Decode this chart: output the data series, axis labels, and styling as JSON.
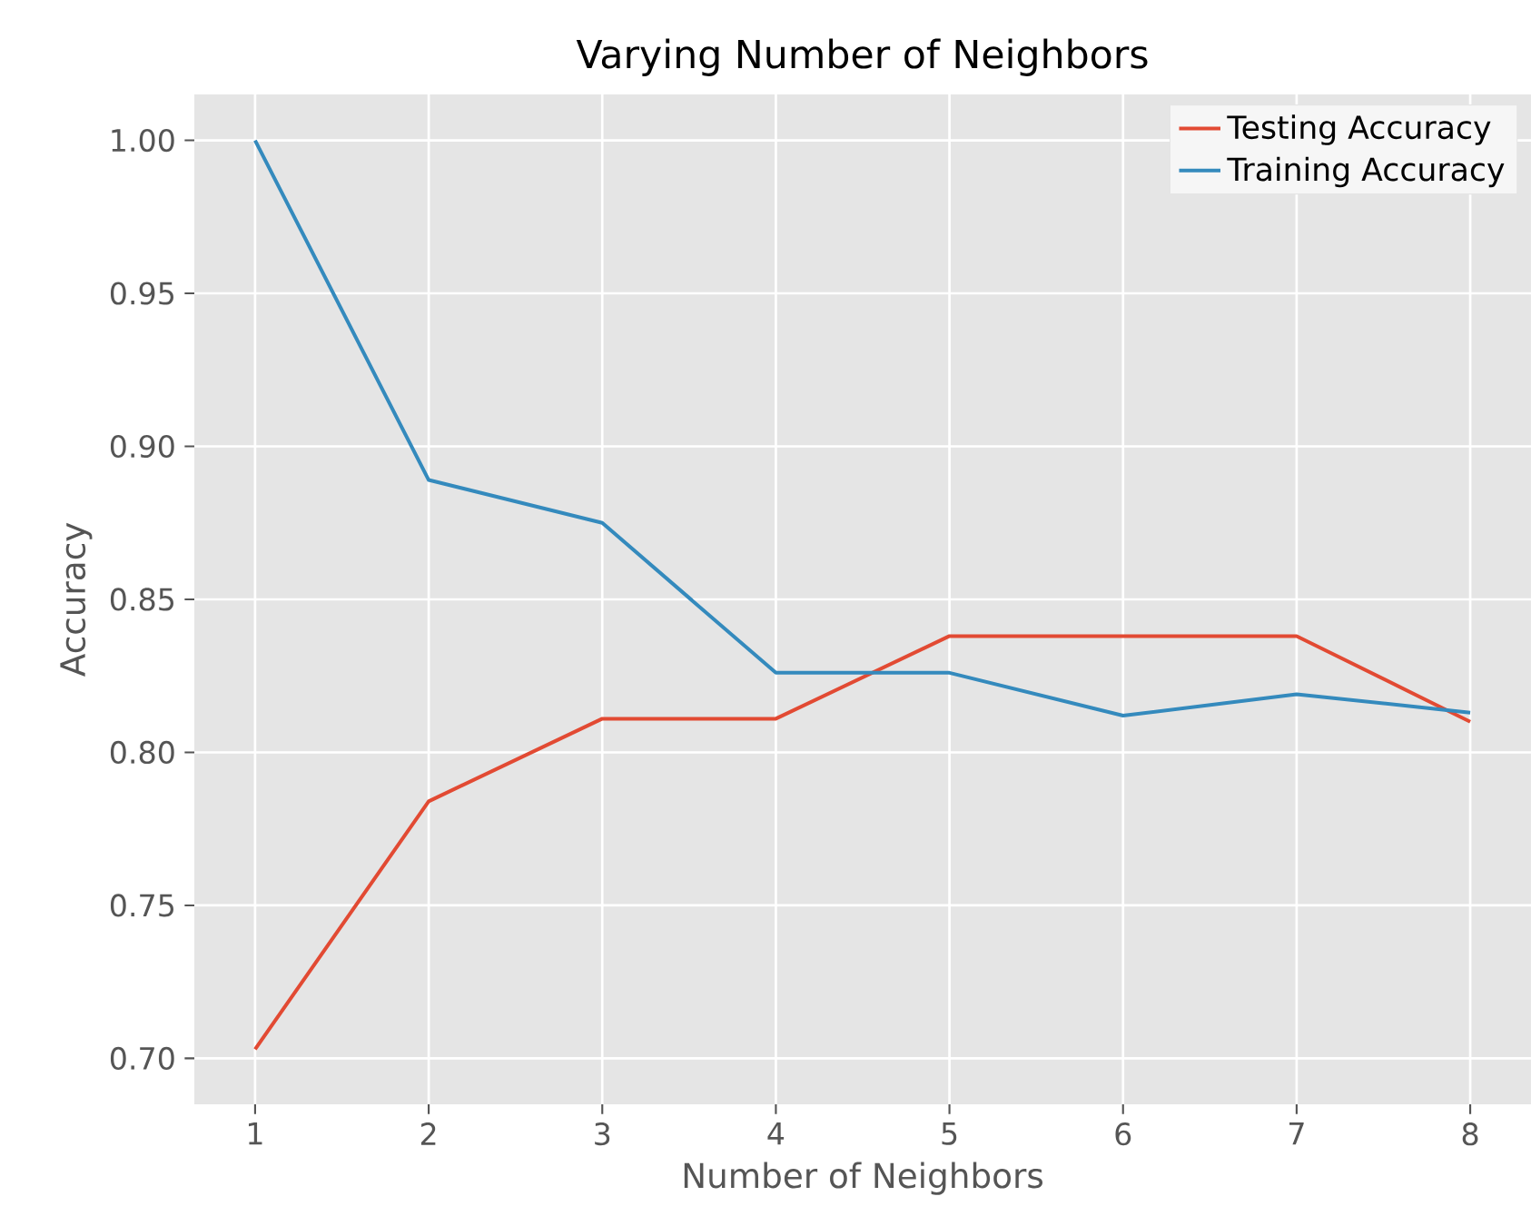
{
  "chart_data": {
    "type": "line",
    "title": "Varying Number of Neighbors",
    "xlabel": "Number of Neighbors",
    "ylabel": "Accuracy",
    "x": [
      1,
      2,
      3,
      4,
      5,
      6,
      7,
      8
    ],
    "series": [
      {
        "name": "Testing Accuracy",
        "color": "#e24a33",
        "values": [
          0.703,
          0.784,
          0.811,
          0.811,
          0.838,
          0.838,
          0.838,
          0.81
        ]
      },
      {
        "name": "Training Accuracy",
        "color": "#348abd",
        "values": [
          1.0,
          0.889,
          0.875,
          0.826,
          0.826,
          0.812,
          0.819,
          0.813
        ]
      }
    ],
    "xlim": [
      0.65,
      8.35
    ],
    "ylim": [
      0.685,
      1.015
    ],
    "xticks": [
      1,
      2,
      3,
      4,
      5,
      6,
      7,
      8
    ],
    "yticks": [
      {
        "value": 0.7,
        "label": "0.70"
      },
      {
        "value": 0.75,
        "label": "0.75"
      },
      {
        "value": 0.8,
        "label": "0.80"
      },
      {
        "value": 0.85,
        "label": "0.85"
      },
      {
        "value": 0.9,
        "label": "0.90"
      },
      {
        "value": 0.95,
        "label": "0.95"
      },
      {
        "value": 1.0,
        "label": "1.00"
      }
    ],
    "grid": true,
    "legend": "top right",
    "marker": "none",
    "line_style": "solid"
  }
}
